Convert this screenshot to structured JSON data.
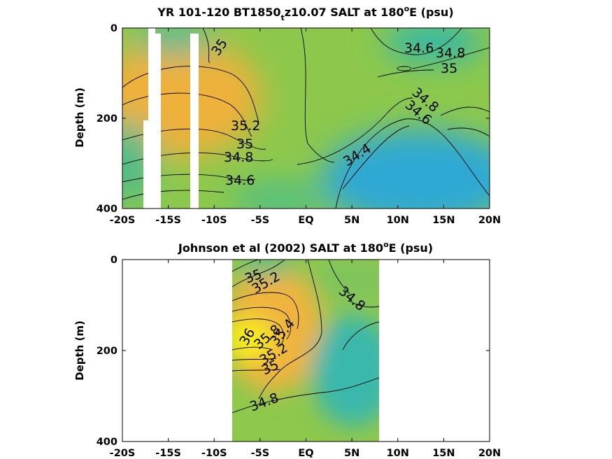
{
  "chart_data": [
    {
      "type": "contour",
      "title": "YR 101-120 BT1850",
      "title_sub": "t",
      "title_tail": "z10.07 SALT at 180",
      "title_sup": "o",
      "title_end": "E (psu)",
      "ylabel": "Depth (m)",
      "xlim": [
        -20,
        20
      ],
      "ylim": [
        0,
        400
      ],
      "x_ticks": [
        "-20S",
        "-15S",
        "-10S",
        "-5S",
        "EQ",
        "5N",
        "10N",
        "15N",
        "20N"
      ],
      "y_ticks": [
        "0",
        "200",
        "400"
      ],
      "contour_labels": [
        "35",
        "34.6",
        "34.8",
        "35",
        "34.8",
        "34.6",
        "35.2",
        "35",
        "34.8",
        "34.6",
        "34.4"
      ],
      "contour_levels": [
        34.4,
        34.6,
        34.8,
        35.0,
        35.2
      ],
      "colors": {
        "high": "#f2b13a",
        "mid": "#8fc84a",
        "low": "#2ba9d6"
      }
    },
    {
      "type": "contour",
      "title": "Johnson et al (2002) SALT at 180",
      "title_sup": "o",
      "title_end": "E (psu)",
      "ylabel": "Depth (m)",
      "xlim": [
        -20,
        20
      ],
      "ylim": [
        0,
        400
      ],
      "data_xrange": [
        -8,
        8
      ],
      "x_ticks": [
        "-20S",
        "-15S",
        "-10S",
        "-5S",
        "EQ",
        "5N",
        "10N",
        "15N",
        "20N"
      ],
      "y_ticks": [
        "0",
        "200",
        "400"
      ],
      "contour_labels": [
        "35",
        "35.2",
        "34.8",
        "36",
        "35.8",
        "35.4",
        "35.2",
        "35",
        "34.8"
      ],
      "contour_levels": [
        34.8,
        35.0,
        35.2,
        35.4,
        35.6,
        35.8,
        36.0
      ],
      "colors": {
        "max": "#f8f014",
        "high": "#f0b43c",
        "mid": "#8fc84a",
        "low": "#36b7b0"
      }
    }
  ]
}
